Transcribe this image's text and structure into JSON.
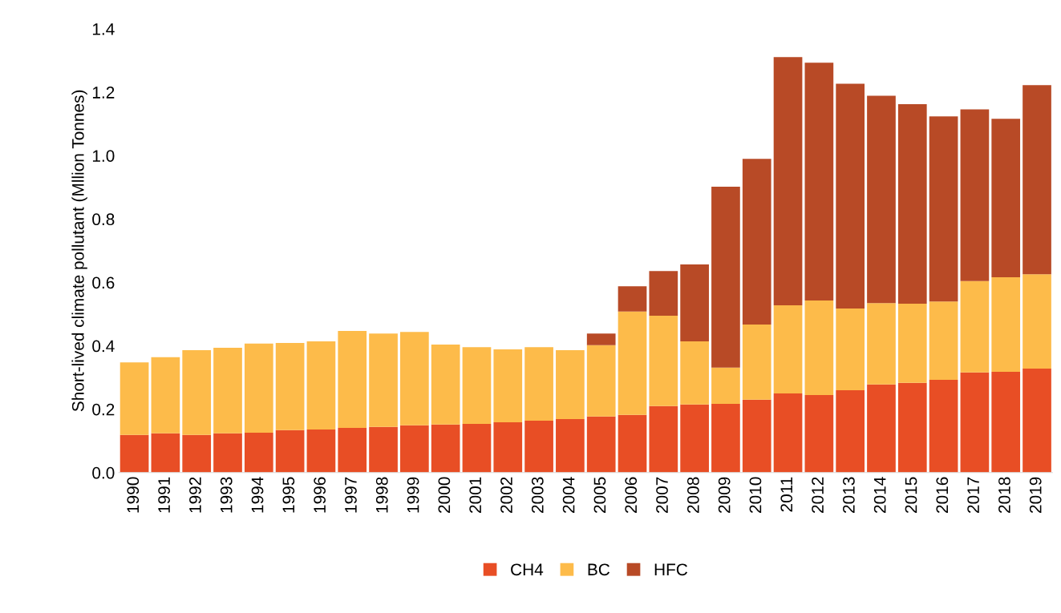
{
  "chart_data": {
    "type": "bar",
    "stacked": true,
    "ylabel": "Short-lived climate pollutant (Mllion Tonnes)",
    "categories": [
      "1990",
      "1991",
      "1992",
      "1993",
      "1994",
      "1995",
      "1996",
      "1997",
      "1998",
      "1999",
      "2000",
      "2001",
      "2002",
      "2003",
      "2004",
      "2005",
      "2006",
      "2007",
      "2008",
      "2009",
      "2010",
      "2011",
      "2012",
      "2013",
      "2014",
      "2015",
      "2016",
      "2017",
      "2018",
      "2019"
    ],
    "series": [
      {
        "name": "CH4",
        "color": "#e84e25",
        "values": [
          0.119,
          0.124,
          0.119,
          0.124,
          0.126,
          0.134,
          0.136,
          0.141,
          0.144,
          0.149,
          0.152,
          0.154,
          0.159,
          0.164,
          0.169,
          0.177,
          0.182,
          0.21,
          0.215,
          0.217,
          0.23,
          0.25,
          0.245,
          0.26,
          0.278,
          0.283,
          0.293,
          0.316,
          0.318,
          0.328
        ]
      },
      {
        "name": "BC",
        "color": "#fdbb4a",
        "values": [
          0.229,
          0.24,
          0.267,
          0.27,
          0.281,
          0.275,
          0.278,
          0.306,
          0.295,
          0.295,
          0.252,
          0.242,
          0.23,
          0.232,
          0.217,
          0.225,
          0.326,
          0.285,
          0.199,
          0.114,
          0.237,
          0.278,
          0.298,
          0.258,
          0.257,
          0.25,
          0.247,
          0.288,
          0.298,
          0.298
        ]
      },
      {
        "name": "HFC",
        "color": "#b84a26",
        "values": [
          null,
          null,
          null,
          null,
          null,
          null,
          null,
          null,
          null,
          null,
          null,
          null,
          null,
          null,
          null,
          0.037,
          0.08,
          0.141,
          0.243,
          0.571,
          0.523,
          0.783,
          0.75,
          0.709,
          0.654,
          0.629,
          0.584,
          0.542,
          0.5,
          0.596
        ]
      }
    ],
    "ylim": [
      0,
      1.4
    ],
    "yticks": [
      {
        "value": 0,
        "label": "0.0"
      },
      {
        "value": 0.2,
        "label": "0.2"
      },
      {
        "value": 0.4,
        "label": "0.4"
      },
      {
        "value": 0.6,
        "label": "0.6"
      },
      {
        "value": 0.8,
        "label": "0.8"
      },
      {
        "value": 1.0,
        "label": "1.0"
      },
      {
        "value": 1.2,
        "label": "1.2"
      },
      {
        "value": 1.4,
        "label": "1.4"
      }
    ],
    "legend": "bottom"
  }
}
